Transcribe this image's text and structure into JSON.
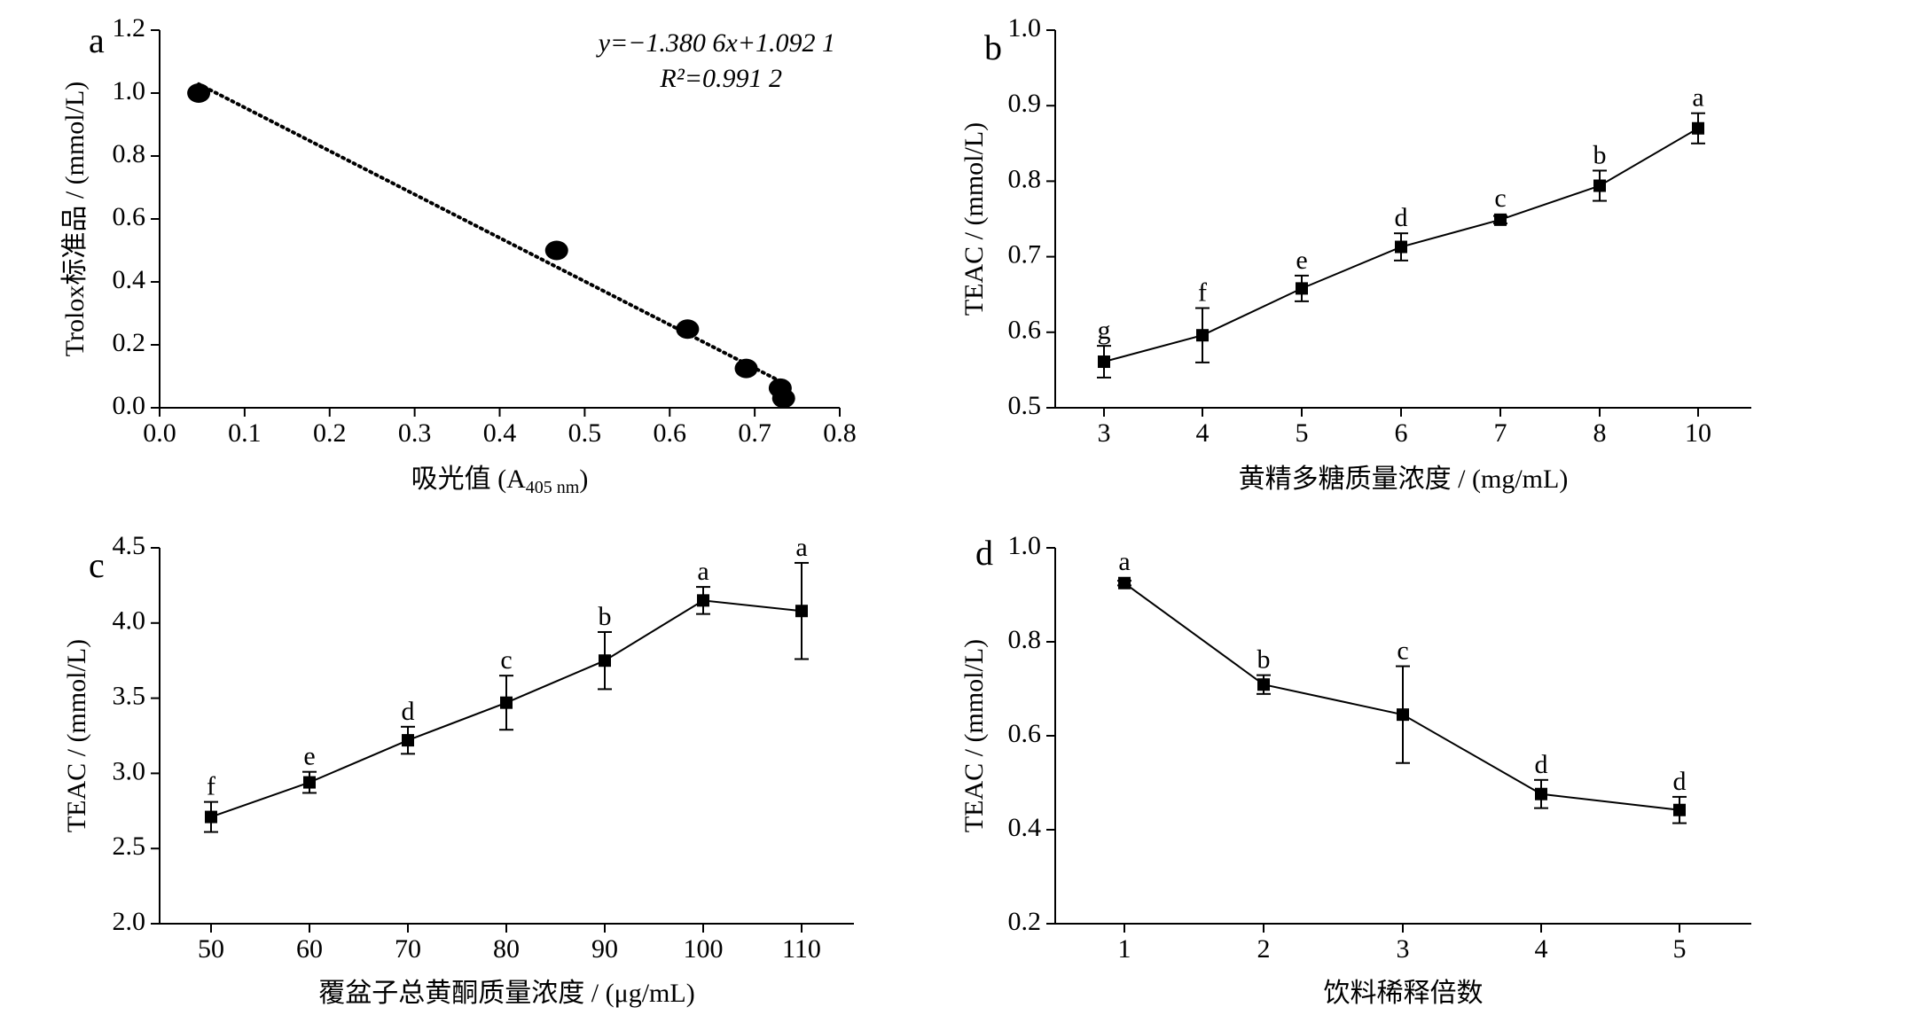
{
  "chart_data": [
    {
      "panel": "a",
      "type": "scatter",
      "title": "",
      "xlabel": "吸光值 (A",
      "xlabel_sub": "405 nm",
      "xlabel_end": ")",
      "ylabel": "Trolox标准品 / (mmol/L)",
      "xlim": [
        0.0,
        0.8
      ],
      "ylim": [
        0.0,
        1.2
      ],
      "xticks": [
        "0.0",
        "0.1",
        "0.2",
        "0.3",
        "0.4",
        "0.5",
        "0.6",
        "0.7",
        "0.8"
      ],
      "yticks": [
        "0.0",
        "0.2",
        "0.4",
        "0.6",
        "0.8",
        "1.0",
        "1.2"
      ],
      "x": [
        0.046,
        0.467,
        0.621,
        0.69,
        0.73,
        0.734
      ],
      "y": [
        1.0,
        0.5,
        0.25,
        0.125,
        0.0625,
        0.03
      ],
      "trendline": {
        "style": "dotted",
        "x1": 0.046,
        "x2": 0.734,
        "slope": -1.3806,
        "intercept": 1.0921
      },
      "equation": "y=−1.380 6x+1.092 1",
      "r2": "R²=0.991 2"
    },
    {
      "panel": "b",
      "type": "line",
      "title": "",
      "xlabel": "黄精多糖质量浓度 / (mg/mL)",
      "ylabel": "TEAC / (mmol/L)",
      "categories": [
        "3",
        "4",
        "5",
        "6",
        "7",
        "8",
        "10"
      ],
      "values": [
        0.561,
        0.596,
        0.658,
        0.713,
        0.749,
        0.794,
        0.87
      ],
      "errors": [
        0.021,
        0.036,
        0.017,
        0.018,
        0.005,
        0.02,
        0.02
      ],
      "letters": [
        "g",
        "f",
        "e",
        "d",
        "c",
        "b",
        "a"
      ],
      "ylim": [
        0.5,
        1.0
      ],
      "yticks": [
        "0.5",
        "0.6",
        "0.7",
        "0.8",
        "0.9",
        "1.0"
      ]
    },
    {
      "panel": "c",
      "type": "line",
      "title": "",
      "xlabel": "覆盆子总黄酮质量浓度 / (μg/mL)",
      "ylabel": "TEAC / (mmol/L)",
      "categories": [
        "50",
        "60",
        "70",
        "80",
        "90",
        "100",
        "110"
      ],
      "values": [
        2.71,
        2.94,
        3.22,
        3.47,
        3.75,
        4.15,
        4.08
      ],
      "errors": [
        0.1,
        0.07,
        0.09,
        0.18,
        0.19,
        0.09,
        0.32
      ],
      "letters": [
        "f",
        "e",
        "d",
        "c",
        "b",
        "a",
        "a"
      ],
      "ylim": [
        2.0,
        4.5
      ],
      "yticks": [
        "2.0",
        "2.5",
        "3.0",
        "3.5",
        "4.0",
        "4.5"
      ]
    },
    {
      "panel": "d",
      "type": "line",
      "title": "",
      "xlabel": "饮料稀释倍数",
      "ylabel": "TEAC / (mmol/L)",
      "categories": [
        "1",
        "2",
        "3",
        "4",
        "5"
      ],
      "values": [
        0.925,
        0.709,
        0.645,
        0.476,
        0.442
      ],
      "errors": [
        0.005,
        0.02,
        0.103,
        0.03,
        0.028
      ],
      "letters": [
        "a",
        "b",
        "c",
        "d",
        "d"
      ],
      "ylim": [
        0.2,
        1.0
      ],
      "yticks": [
        "0.2",
        "0.4",
        "0.6",
        "0.8",
        "1.0"
      ]
    }
  ]
}
